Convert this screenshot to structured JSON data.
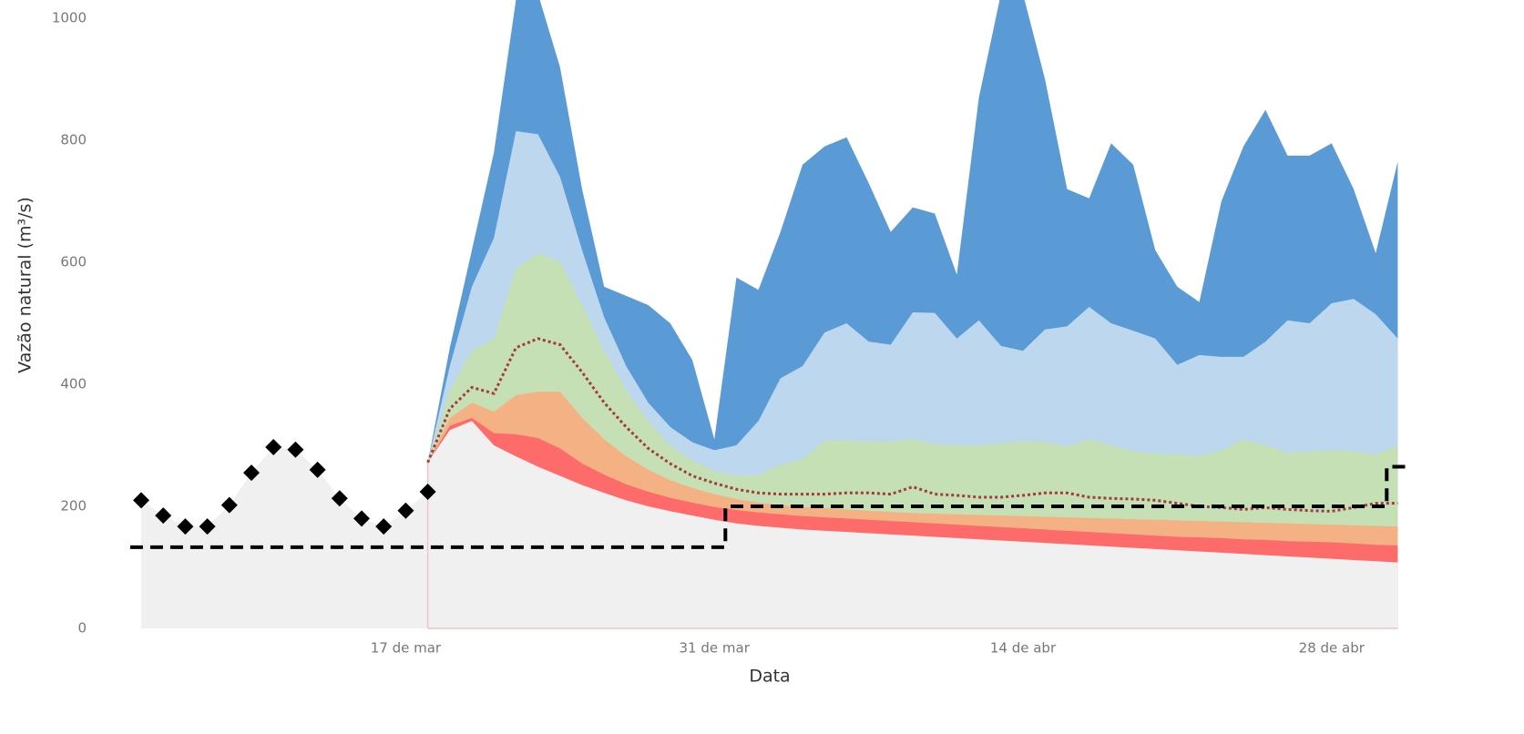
{
  "chart_data": {
    "type": "area",
    "x_label": "Data",
    "y_label": "Vazão natural (m³/s)",
    "categories": [
      null,
      null,
      null,
      null,
      null,
      null,
      null,
      null,
      null,
      null,
      null,
      null,
      "17 de mar",
      null,
      null,
      null,
      null,
      null,
      null,
      null,
      null,
      null,
      null,
      null,
      null,
      null,
      "31 de mar",
      null,
      null,
      null,
      null,
      null,
      null,
      null,
      null,
      null,
      null,
      null,
      null,
      null,
      "14 de abr",
      null,
      null,
      null,
      null,
      null,
      null,
      null,
      null,
      null,
      null,
      null,
      null,
      null,
      "28 de abr",
      null,
      null,
      null
    ],
    "ylim": [
      0,
      1030
    ],
    "yticks": [
      0,
      200,
      400,
      600,
      800,
      1000
    ],
    "series": [
      {
        "type": "observed",
        "color": "#000000",
        "fill": "#f0f0f0",
        "values": [
          210,
          185,
          167,
          167,
          202,
          255,
          297,
          293,
          260,
          213,
          180,
          167,
          193,
          224,
          null,
          null,
          null,
          null,
          null,
          null,
          null,
          null,
          null,
          null,
          null,
          null,
          null,
          null,
          null,
          null,
          null,
          null,
          null,
          null,
          null,
          null,
          null,
          null,
          null,
          null,
          null,
          null,
          null,
          null,
          null,
          null,
          null,
          null,
          null,
          null,
          null,
          null,
          null,
          null,
          null,
          null,
          null,
          null
        ]
      },
      {
        "type": "band",
        "color": "#f0f0f0",
        "values": [
          null,
          null,
          null,
          null,
          null,
          null,
          null,
          null,
          null,
          null,
          null,
          null,
          null,
          272,
          325,
          340,
          300,
          282,
          265,
          250,
          235,
          222,
          210,
          200,
          192,
          185,
          178,
          172,
          168,
          165,
          162,
          160,
          158,
          156,
          154,
          152,
          150,
          148,
          146,
          144,
          142,
          140,
          138,
          136,
          134,
          132,
          130,
          128,
          126,
          124,
          122,
          120,
          118,
          116,
          114,
          112,
          110,
          108
        ]
      },
      {
        "type": "band",
        "color": "#fd6b6b",
        "values": [
          null,
          null,
          null,
          null,
          null,
          null,
          null,
          null,
          null,
          null,
          null,
          null,
          null,
          272,
          332,
          345,
          320,
          318,
          312,
          295,
          270,
          252,
          236,
          224,
          214,
          206,
          199,
          194,
          190,
          187,
          184,
          182,
          180,
          178,
          176,
          174,
          172,
          170,
          168,
          166,
          164,
          162,
          160,
          158,
          156,
          154,
          152,
          150,
          149,
          148,
          146,
          145,
          143,
          142,
          141,
          139,
          137,
          136
        ]
      },
      {
        "type": "band",
        "color": "#f4b183",
        "values": [
          null,
          null,
          null,
          null,
          null,
          null,
          null,
          null,
          null,
          null,
          null,
          null,
          null,
          272,
          345,
          370,
          355,
          382,
          388,
          388,
          345,
          310,
          282,
          260,
          243,
          230,
          220,
          212,
          206,
          202,
          199,
          197,
          195,
          193,
          191,
          189,
          188,
          187,
          186,
          185,
          184,
          183,
          182,
          181,
          180,
          179,
          178,
          177,
          176,
          175,
          174,
          173,
          172,
          171,
          170,
          169,
          168,
          167
        ]
      },
      {
        "type": "band",
        "color": "#c5e0b4",
        "values": [
          null,
          null,
          null,
          null,
          null,
          null,
          null,
          null,
          null,
          null,
          null,
          null,
          null,
          272,
          390,
          455,
          475,
          590,
          615,
          600,
          530,
          455,
          390,
          340,
          300,
          275,
          258,
          250,
          252,
          268,
          278,
          308,
          308,
          306,
          306,
          310,
          302,
          300,
          300,
          303,
          307,
          305,
          298,
          310,
          300,
          290,
          287,
          285,
          283,
          292,
          310,
          300,
          288,
          290,
          292,
          290,
          285,
          300
        ]
      },
      {
        "type": "band",
        "color": "#bdd7ee",
        "values": [
          null,
          null,
          null,
          null,
          null,
          null,
          null,
          null,
          null,
          null,
          null,
          null,
          null,
          272,
          430,
          560,
          640,
          815,
          810,
          740,
          620,
          510,
          430,
          370,
          330,
          305,
          292,
          300,
          340,
          410,
          430,
          485,
          500,
          470,
          465,
          518,
          517,
          475,
          505,
          463,
          455,
          490,
          495,
          527,
          500,
          488,
          475,
          432,
          448,
          445,
          445,
          470,
          505,
          500,
          533,
          540,
          515,
          475
        ]
      },
      {
        "type": "band",
        "color": "#5b9bd5",
        "values": [
          null,
          null,
          null,
          null,
          null,
          null,
          null,
          null,
          null,
          null,
          null,
          null,
          null,
          272,
          460,
          620,
          780,
          1030,
          1040,
          920,
          720,
          560,
          545,
          530,
          500,
          440,
          310,
          575,
          555,
          650,
          760,
          790,
          805,
          730,
          650,
          690,
          680,
          580,
          870,
          1040,
          1040,
          900,
          720,
          705,
          795,
          760,
          620,
          560,
          535,
          700,
          790,
          850,
          775,
          775,
          795,
          720,
          615,
          765
        ]
      },
      {
        "type": "line",
        "color": "#a33a3f",
        "dash": "dotted",
        "values": [
          null,
          null,
          null,
          null,
          null,
          null,
          null,
          null,
          null,
          null,
          null,
          null,
          null,
          272,
          360,
          395,
          385,
          460,
          475,
          465,
          420,
          370,
          330,
          295,
          270,
          250,
          238,
          228,
          222,
          220,
          220,
          220,
          222,
          222,
          220,
          232,
          220,
          218,
          215,
          215,
          218,
          222,
          222,
          215,
          213,
          212,
          210,
          205,
          200,
          198,
          195,
          198,
          195,
          193,
          192,
          198,
          205,
          205
        ]
      },
      {
        "type": "step",
        "color": "#000000",
        "dash": "dashed",
        "values": [
          133,
          133,
          133,
          133,
          133,
          133,
          133,
          133,
          133,
          133,
          133,
          133,
          133,
          133,
          133,
          133,
          133,
          133,
          133,
          133,
          133,
          133,
          133,
          133,
          133,
          133,
          133,
          200,
          200,
          200,
          200,
          200,
          200,
          200,
          200,
          200,
          200,
          200,
          200,
          200,
          200,
          200,
          200,
          200,
          200,
          200,
          200,
          200,
          200,
          200,
          200,
          200,
          200,
          200,
          200,
          200,
          200,
          265
        ]
      }
    ]
  }
}
